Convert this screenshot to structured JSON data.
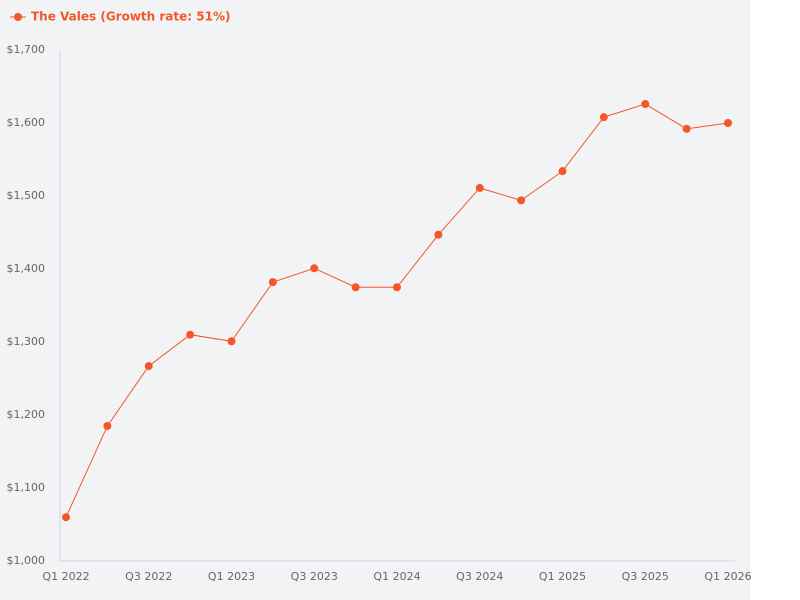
{
  "chart_data": {
    "type": "line",
    "categories": [
      "Q1 2022",
      null,
      "Q3 2022",
      null,
      "Q1 2023",
      null,
      "Q3 2023",
      null,
      "Q1 2024",
      null,
      "Q3 2024",
      null,
      "Q1 2025",
      null,
      "Q3 2025",
      null,
      "Q1 2026"
    ],
    "series": [
      {
        "name": "The Vales (Growth rate: 51%)",
        "color": "#f4562a",
        "values": [
          1060,
          1185,
          1267,
          1310,
          1301,
          1382,
          1401,
          1375,
          1375,
          1447,
          1511,
          1494,
          1534,
          1608,
          1626,
          1592,
          1600
        ]
      }
    ],
    "ylim": [
      1000,
      1700
    ],
    "yticks": [
      {
        "value": 1000,
        "label": "$1,000"
      },
      {
        "value": 1100,
        "label": "$1,100"
      },
      {
        "value": 1200,
        "label": "$1,200"
      },
      {
        "value": 1300,
        "label": "$1,300"
      },
      {
        "value": 1400,
        "label": "$1,400"
      },
      {
        "value": 1500,
        "label": "$1,500"
      },
      {
        "value": 1600,
        "label": "$1,600"
      },
      {
        "value": 1700,
        "label": "$1,700"
      }
    ],
    "grid": false,
    "legend": "top-left"
  }
}
